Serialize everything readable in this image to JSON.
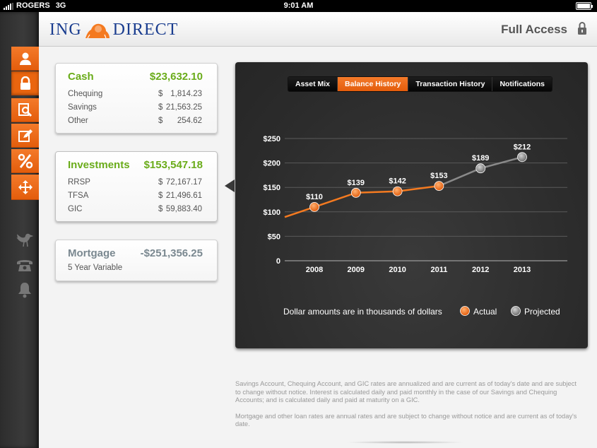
{
  "status_bar": {
    "carrier": "ROGERS",
    "network": "3G",
    "time": "9:01 AM"
  },
  "header": {
    "logo_left": "ING",
    "logo_right": "DIRECT",
    "access_label": "Full Access"
  },
  "cards": {
    "cash": {
      "title": "Cash",
      "total": "$23,632.10",
      "rows": [
        {
          "label": "Chequing",
          "currency": "$",
          "value": "1,814.23"
        },
        {
          "label": "Savings",
          "currency": "$",
          "value": "21,563.25"
        },
        {
          "label": "Other",
          "currency": "$",
          "value": "254.62"
        }
      ]
    },
    "investments": {
      "title": "Investments",
      "total": "$153,547.18",
      "rows": [
        {
          "label": "RRSP",
          "currency": "$",
          "value": "72,167.17"
        },
        {
          "label": "TFSA",
          "currency": "$",
          "value": "21,496.61"
        },
        {
          "label": "GIC",
          "currency": "$",
          "value": "59,883.40"
        }
      ]
    },
    "mortgage": {
      "title": "Mortgage",
      "total": "-$251,356.25",
      "subtitle": "5 Year Variable"
    }
  },
  "tabs": [
    "Asset Mix",
    "Balance History",
    "Transaction History",
    "Notifications"
  ],
  "active_tab": "Balance History",
  "chart_data": {
    "type": "line",
    "x": [
      "2008",
      "2009",
      "2010",
      "2011",
      "2012",
      "2013"
    ],
    "series": [
      {
        "name": "Actual",
        "x": [
          "2008",
          "2009",
          "2010",
          "2011"
        ],
        "values": [
          110,
          139,
          142,
          153
        ],
        "color": "#f47a20"
      },
      {
        "name": "Projected",
        "x": [
          "2011",
          "2012",
          "2013"
        ],
        "values": [
          153,
          189,
          212
        ],
        "color": "#8a8a8a"
      }
    ],
    "point_labels": [
      "$110",
      "$139",
      "$142",
      "$153",
      "$189",
      "$212"
    ],
    "y_ticks": [
      "$250",
      "$200",
      "$150",
      "$100",
      "$50",
      "0"
    ],
    "ylim": [
      0,
      250
    ],
    "grid": true,
    "note": "Dollar amounts are in thousands of dollars",
    "legend": [
      "Actual",
      "Projected"
    ],
    "legend_position": "bottom-right"
  },
  "disclaimer": [
    "Savings Account, Chequing Account, and GIC rates are annualized and are current as of today's date and are subject to change without notice. Interest is calculated daily and paid monthly in the case of our Savings and Chequing Accounts; and is calculated daily and paid at maturity on a GIC.",
    "Mortgage and other loan rates are annual rates and are subject to change without notice and are current as of today's date."
  ],
  "colors": {
    "accent": "#f47a20",
    "brand_blue": "#1a3d8f",
    "positive": "#6aac1a",
    "negative": "#7a8890"
  }
}
